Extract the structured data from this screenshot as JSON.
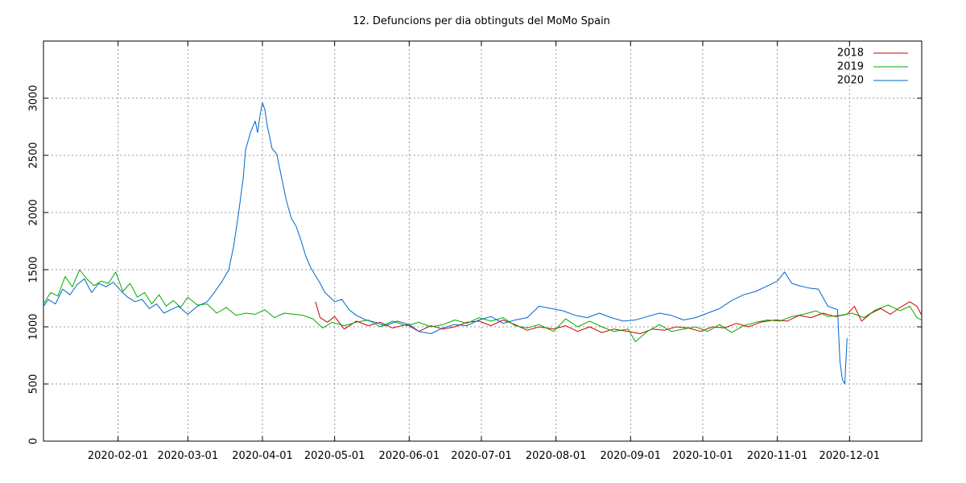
{
  "chart_data": {
    "type": "line",
    "title": "12. Defuncions per dia obtinguts del MoMo Spain",
    "xlabel": "",
    "ylabel": "",
    "x_range": [
      "2020-01-01",
      "2020-12-31"
    ],
    "ylim": [
      0,
      3500
    ],
    "y_ticks": [
      0,
      500,
      1000,
      1500,
      2000,
      2500,
      3000
    ],
    "x_ticks": [
      "2020-02-01",
      "2020-03-01",
      "2020-04-01",
      "2020-05-01",
      "2020-06-01",
      "2020-07-01",
      "2020-08-01",
      "2020-09-01",
      "2020-10-01",
      "2020-11-01",
      "2020-12-01"
    ],
    "grid": true,
    "legend_position": "top-right",
    "series": [
      {
        "name": "2018",
        "color": "#cc0000",
        "points": [
          [
            "2020-04-23",
            1220
          ],
          [
            "2020-04-25",
            1080
          ],
          [
            "2020-04-28",
            1040
          ],
          [
            "2020-05-01",
            1090
          ],
          [
            "2020-05-05",
            980
          ],
          [
            "2020-05-10",
            1050
          ],
          [
            "2020-05-15",
            1010
          ],
          [
            "2020-05-20",
            1040
          ],
          [
            "2020-05-25",
            990
          ],
          [
            "2020-05-31",
            1020
          ],
          [
            "2020-06-05",
            960
          ],
          [
            "2020-06-10",
            1010
          ],
          [
            "2020-06-15",
            980
          ],
          [
            "2020-06-20",
            1000
          ],
          [
            "2020-06-25",
            1040
          ],
          [
            "2020-06-30",
            1050
          ],
          [
            "2020-07-05",
            1010
          ],
          [
            "2020-07-10",
            1060
          ],
          [
            "2020-07-15",
            1020
          ],
          [
            "2020-07-20",
            970
          ],
          [
            "2020-07-25",
            1000
          ],
          [
            "2020-07-31",
            980
          ],
          [
            "2020-08-05",
            1010
          ],
          [
            "2020-08-10",
            960
          ],
          [
            "2020-08-15",
            1000
          ],
          [
            "2020-08-20",
            950
          ],
          [
            "2020-08-25",
            980
          ],
          [
            "2020-08-31",
            960
          ],
          [
            "2020-09-05",
            940
          ],
          [
            "2020-09-10",
            980
          ],
          [
            "2020-09-15",
            970
          ],
          [
            "2020-09-20",
            1000
          ],
          [
            "2020-09-25",
            990
          ],
          [
            "2020-09-30",
            960
          ],
          [
            "2020-10-05",
            1000
          ],
          [
            "2020-10-10",
            990
          ],
          [
            "2020-10-15",
            1030
          ],
          [
            "2020-10-20",
            1000
          ],
          [
            "2020-10-25",
            1040
          ],
          [
            "2020-10-31",
            1060
          ],
          [
            "2020-11-05",
            1050
          ],
          [
            "2020-11-10",
            1100
          ],
          [
            "2020-11-15",
            1080
          ],
          [
            "2020-11-20",
            1120
          ],
          [
            "2020-11-25",
            1090
          ],
          [
            "2020-11-30",
            1110
          ],
          [
            "2020-12-03",
            1180
          ],
          [
            "2020-12-06",
            1050
          ],
          [
            "2020-12-10",
            1120
          ],
          [
            "2020-12-14",
            1160
          ],
          [
            "2020-12-18",
            1110
          ],
          [
            "2020-12-22",
            1170
          ],
          [
            "2020-12-26",
            1220
          ],
          [
            "2020-12-29",
            1180
          ],
          [
            "2020-12-31",
            1100
          ]
        ]
      },
      {
        "name": "2019",
        "color": "#00aa00",
        "points": [
          [
            "2020-01-01",
            1200
          ],
          [
            "2020-01-04",
            1300
          ],
          [
            "2020-01-07",
            1270
          ],
          [
            "2020-01-10",
            1440
          ],
          [
            "2020-01-13",
            1350
          ],
          [
            "2020-01-16",
            1500
          ],
          [
            "2020-01-19",
            1420
          ],
          [
            "2020-01-22",
            1360
          ],
          [
            "2020-01-25",
            1400
          ],
          [
            "2020-01-28",
            1380
          ],
          [
            "2020-01-31",
            1480
          ],
          [
            "2020-02-03",
            1310
          ],
          [
            "2020-02-06",
            1380
          ],
          [
            "2020-02-09",
            1260
          ],
          [
            "2020-02-12",
            1300
          ],
          [
            "2020-02-15",
            1200
          ],
          [
            "2020-02-18",
            1280
          ],
          [
            "2020-02-21",
            1180
          ],
          [
            "2020-02-24",
            1230
          ],
          [
            "2020-02-27",
            1170
          ],
          [
            "2020-03-01",
            1260
          ],
          [
            "2020-03-05",
            1190
          ],
          [
            "2020-03-09",
            1200
          ],
          [
            "2020-03-13",
            1120
          ],
          [
            "2020-03-17",
            1170
          ],
          [
            "2020-03-21",
            1100
          ],
          [
            "2020-03-25",
            1120
          ],
          [
            "2020-03-29",
            1110
          ],
          [
            "2020-04-02",
            1150
          ],
          [
            "2020-04-06",
            1080
          ],
          [
            "2020-04-10",
            1120
          ],
          [
            "2020-04-14",
            1110
          ],
          [
            "2020-04-18",
            1100
          ],
          [
            "2020-04-22",
            1070
          ],
          [
            "2020-04-26",
            990
          ],
          [
            "2020-04-30",
            1040
          ],
          [
            "2020-05-05",
            1010
          ],
          [
            "2020-05-10",
            1040
          ],
          [
            "2020-05-15",
            1060
          ],
          [
            "2020-05-20",
            1000
          ],
          [
            "2020-05-25",
            1050
          ],
          [
            "2020-05-31",
            1010
          ],
          [
            "2020-06-05",
            1040
          ],
          [
            "2020-06-10",
            1000
          ],
          [
            "2020-06-15",
            1020
          ],
          [
            "2020-06-20",
            1060
          ],
          [
            "2020-06-25",
            1030
          ],
          [
            "2020-06-30",
            1080
          ],
          [
            "2020-07-05",
            1050
          ],
          [
            "2020-07-10",
            1080
          ],
          [
            "2020-07-15",
            1010
          ],
          [
            "2020-07-20",
            990
          ],
          [
            "2020-07-25",
            1020
          ],
          [
            "2020-07-31",
            960
          ],
          [
            "2020-08-05",
            1070
          ],
          [
            "2020-08-10",
            1000
          ],
          [
            "2020-08-15",
            1050
          ],
          [
            "2020-08-20",
            1000
          ],
          [
            "2020-08-25",
            960
          ],
          [
            "2020-08-31",
            980
          ],
          [
            "2020-09-03",
            870
          ],
          [
            "2020-09-08",
            960
          ],
          [
            "2020-09-13",
            1020
          ],
          [
            "2020-09-18",
            960
          ],
          [
            "2020-09-23",
            980
          ],
          [
            "2020-09-28",
            1000
          ],
          [
            "2020-10-03",
            960
          ],
          [
            "2020-10-08",
            1020
          ],
          [
            "2020-10-13",
            950
          ],
          [
            "2020-10-18",
            1010
          ],
          [
            "2020-10-23",
            1040
          ],
          [
            "2020-10-28",
            1060
          ],
          [
            "2020-11-02",
            1050
          ],
          [
            "2020-11-07",
            1090
          ],
          [
            "2020-11-12",
            1110
          ],
          [
            "2020-11-17",
            1140
          ],
          [
            "2020-11-22",
            1090
          ],
          [
            "2020-11-27",
            1100
          ],
          [
            "2020-12-02",
            1120
          ],
          [
            "2020-12-07",
            1080
          ],
          [
            "2020-12-12",
            1150
          ],
          [
            "2020-12-17",
            1190
          ],
          [
            "2020-12-22",
            1140
          ],
          [
            "2020-12-26",
            1180
          ],
          [
            "2020-12-29",
            1080
          ],
          [
            "2020-12-31",
            1060
          ]
        ]
      },
      {
        "name": "2020",
        "color": "#0066cc",
        "points": [
          [
            "2020-01-01",
            1180
          ],
          [
            "2020-01-03",
            1240
          ],
          [
            "2020-01-06",
            1200
          ],
          [
            "2020-01-09",
            1330
          ],
          [
            "2020-01-12",
            1280
          ],
          [
            "2020-01-15",
            1370
          ],
          [
            "2020-01-18",
            1420
          ],
          [
            "2020-01-21",
            1300
          ],
          [
            "2020-01-24",
            1380
          ],
          [
            "2020-01-27",
            1350
          ],
          [
            "2020-01-30",
            1390
          ],
          [
            "2020-02-02",
            1320
          ],
          [
            "2020-02-05",
            1260
          ],
          [
            "2020-02-08",
            1220
          ],
          [
            "2020-02-11",
            1240
          ],
          [
            "2020-02-14",
            1160
          ],
          [
            "2020-02-17",
            1200
          ],
          [
            "2020-02-20",
            1120
          ],
          [
            "2020-02-23",
            1150
          ],
          [
            "2020-02-26",
            1180
          ],
          [
            "2020-03-01",
            1110
          ],
          [
            "2020-03-05",
            1180
          ],
          [
            "2020-03-09",
            1220
          ],
          [
            "2020-03-12",
            1300
          ],
          [
            "2020-03-15",
            1390
          ],
          [
            "2020-03-18",
            1500
          ],
          [
            "2020-03-20",
            1700
          ],
          [
            "2020-03-22",
            1980
          ],
          [
            "2020-03-24",
            2300
          ],
          [
            "2020-03-25",
            2550
          ],
          [
            "2020-03-27",
            2700
          ],
          [
            "2020-03-29",
            2800
          ],
          [
            "2020-03-30",
            2700
          ],
          [
            "2020-03-31",
            2850
          ],
          [
            "2020-04-01",
            2960
          ],
          [
            "2020-04-02",
            2900
          ],
          [
            "2020-04-03",
            2760
          ],
          [
            "2020-04-05",
            2560
          ],
          [
            "2020-04-07",
            2510
          ],
          [
            "2020-04-09",
            2300
          ],
          [
            "2020-04-11",
            2100
          ],
          [
            "2020-04-13",
            1950
          ],
          [
            "2020-04-15",
            1880
          ],
          [
            "2020-04-17",
            1760
          ],
          [
            "2020-04-19",
            1620
          ],
          [
            "2020-04-21",
            1520
          ],
          [
            "2020-04-23",
            1450
          ],
          [
            "2020-04-25",
            1380
          ],
          [
            "2020-04-27",
            1300
          ],
          [
            "2020-04-29",
            1260
          ],
          [
            "2020-05-01",
            1220
          ],
          [
            "2020-05-04",
            1240
          ],
          [
            "2020-05-07",
            1150
          ],
          [
            "2020-05-10",
            1100
          ],
          [
            "2020-05-14",
            1060
          ],
          [
            "2020-05-18",
            1040
          ],
          [
            "2020-05-22",
            1010
          ],
          [
            "2020-05-27",
            1050
          ],
          [
            "2020-06-01",
            1020
          ],
          [
            "2020-06-05",
            960
          ],
          [
            "2020-06-10",
            940
          ],
          [
            "2020-06-15",
            990
          ],
          [
            "2020-06-20",
            1020
          ],
          [
            "2020-06-25",
            1010
          ],
          [
            "2020-06-30",
            1060
          ],
          [
            "2020-07-05",
            1090
          ],
          [
            "2020-07-10",
            1030
          ],
          [
            "2020-07-15",
            1060
          ],
          [
            "2020-07-20",
            1080
          ],
          [
            "2020-07-25",
            1180
          ],
          [
            "2020-07-30",
            1160
          ],
          [
            "2020-08-04",
            1140
          ],
          [
            "2020-08-09",
            1100
          ],
          [
            "2020-08-14",
            1080
          ],
          [
            "2020-08-19",
            1120
          ],
          [
            "2020-08-24",
            1080
          ],
          [
            "2020-08-29",
            1050
          ],
          [
            "2020-09-03",
            1060
          ],
          [
            "2020-09-08",
            1090
          ],
          [
            "2020-09-13",
            1120
          ],
          [
            "2020-09-18",
            1100
          ],
          [
            "2020-09-23",
            1060
          ],
          [
            "2020-09-28",
            1080
          ],
          [
            "2020-10-03",
            1120
          ],
          [
            "2020-10-08",
            1160
          ],
          [
            "2020-10-13",
            1230
          ],
          [
            "2020-10-18",
            1280
          ],
          [
            "2020-10-23",
            1310
          ],
          [
            "2020-10-28",
            1360
          ],
          [
            "2020-11-01",
            1400
          ],
          [
            "2020-11-04",
            1480
          ],
          [
            "2020-11-07",
            1380
          ],
          [
            "2020-11-10",
            1360
          ],
          [
            "2020-11-14",
            1340
          ],
          [
            "2020-11-18",
            1330
          ],
          [
            "2020-11-22",
            1180
          ],
          [
            "2020-11-26",
            1150
          ],
          [
            "2020-11-27",
            700
          ],
          [
            "2020-11-28",
            540
          ],
          [
            "2020-11-29",
            500
          ],
          [
            "2020-11-30",
            900
          ]
        ]
      }
    ]
  }
}
